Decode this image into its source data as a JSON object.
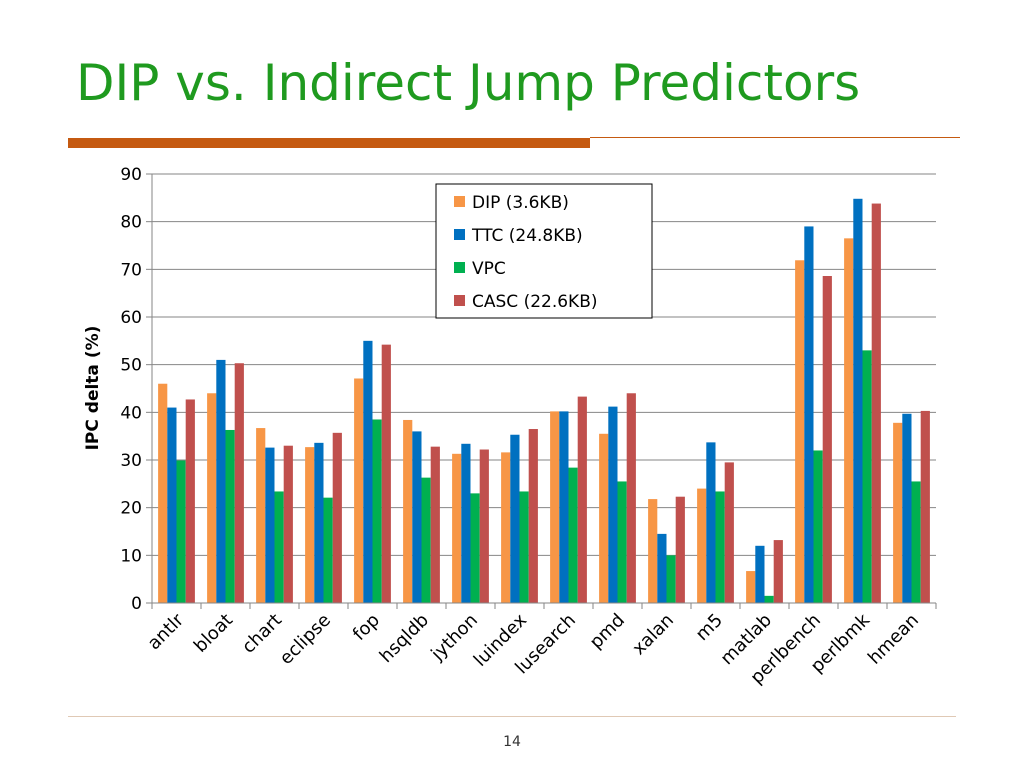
{
  "slide": {
    "title": "DIP vs. Indirect Jump Predictors",
    "page_number": "14"
  },
  "colors": {
    "title": "#1f9a1f",
    "accent_rule": "#c55a11"
  },
  "chart_data": {
    "type": "bar",
    "title": "",
    "xlabel": "",
    "ylabel": "IPC delta (%)",
    "ylim": [
      0,
      90
    ],
    "yticks": [
      0,
      10,
      20,
      30,
      40,
      50,
      60,
      70,
      80,
      90
    ],
    "grid": true,
    "legend_position": "top-center",
    "categories": [
      "antlr",
      "bloat",
      "chart",
      "eclipse",
      "fop",
      "hsqldb",
      "jython",
      "luindex",
      "lusearch",
      "pmd",
      "xalan",
      "m5",
      "matlab",
      "perlbench",
      "perlbmk",
      "hmean"
    ],
    "series": [
      {
        "name": "DIP (3.6KB)",
        "color": "#f79646",
        "values": [
          46,
          44,
          36.7,
          32.7,
          47.1,
          38.4,
          31.3,
          31.6,
          40.2,
          35.5,
          21.8,
          24,
          6.7,
          71.9,
          76.5,
          37.8
        ]
      },
      {
        "name": "TTC (24.8KB)",
        "color": "#0070c0",
        "values": [
          41,
          51,
          32.6,
          33.6,
          55,
          36,
          33.4,
          35.3,
          40.2,
          41.2,
          14.5,
          33.7,
          12,
          79,
          84.8,
          39.7
        ]
      },
      {
        "name": "VPC",
        "color": "#00b050",
        "values": [
          29.9,
          36.3,
          23.4,
          22.1,
          38.5,
          26.3,
          23,
          23.4,
          28.4,
          25.5,
          10,
          23.4,
          1.5,
          32,
          53,
          25.5
        ]
      },
      {
        "name": "CASC (22.6KB)",
        "color": "#c0504d",
        "values": [
          42.7,
          50.3,
          33,
          35.7,
          54.2,
          32.8,
          32.2,
          36.5,
          43.3,
          44,
          22.3,
          29.5,
          13.2,
          68.6,
          83.8,
          40.3
        ]
      }
    ]
  }
}
